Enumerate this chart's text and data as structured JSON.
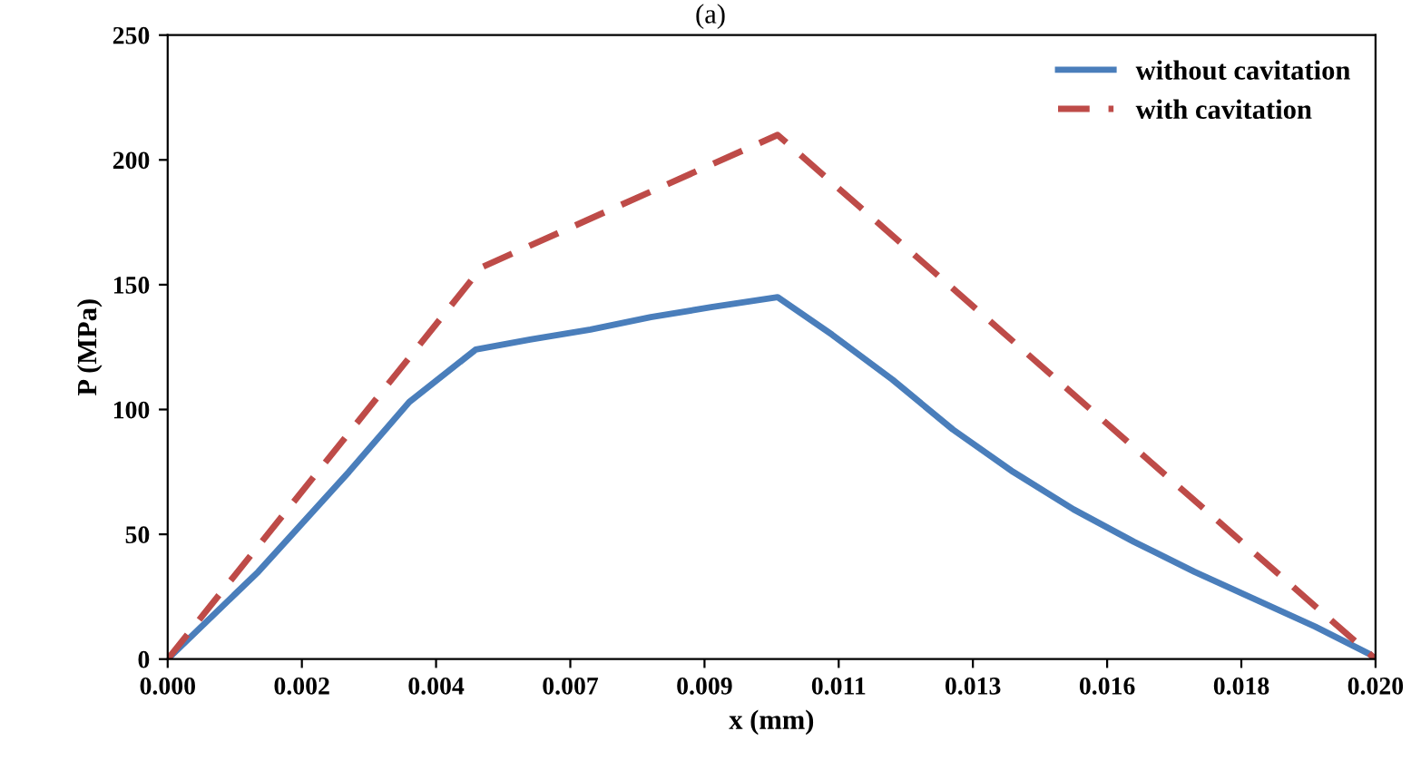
{
  "chart_data": {
    "type": "line",
    "title": "(a)",
    "xlabel": "x (mm)",
    "ylabel": "P (MPa)",
    "xlim": [
      0,
      0.02
    ],
    "ylim": [
      0,
      250
    ],
    "xticks": [
      {
        "value": 0,
        "label": "0.000"
      },
      {
        "value": 0.002222,
        "label": "0.002"
      },
      {
        "value": 0.004444,
        "label": "0.004"
      },
      {
        "value": 0.006667,
        "label": "0.007"
      },
      {
        "value": 0.008889,
        "label": "0.009"
      },
      {
        "value": 0.011111,
        "label": "0.011"
      },
      {
        "value": 0.013333,
        "label": "0.013"
      },
      {
        "value": 0.015556,
        "label": "0.016"
      },
      {
        "value": 0.017778,
        "label": "0.018"
      },
      {
        "value": 0.02,
        "label": "0.020"
      }
    ],
    "yticks": [
      0,
      50,
      100,
      150,
      200,
      250
    ],
    "grid": false,
    "legend": "top right",
    "series": [
      {
        "name": "without cavitation",
        "color": "#4a7ebb",
        "line_style": "solid",
        "x": [
          0,
          0.0015,
          0.003,
          0.004,
          0.0051,
          0.006,
          0.007,
          0.008,
          0.009,
          0.0101,
          0.011,
          0.012,
          0.013,
          0.014,
          0.015,
          0.016,
          0.017,
          0.018,
          0.019,
          0.0199,
          0.02
        ],
        "values": [
          0,
          35,
          75,
          103,
          124,
          128,
          132,
          137,
          141,
          145,
          130,
          112,
          92,
          75,
          60,
          47,
          35,
          24,
          13,
          2,
          0
        ]
      },
      {
        "name": "with cavitation",
        "color": "#be4b48",
        "line_style": "dashed",
        "x": [
          0,
          0.0052,
          0.0101,
          0.02
        ],
        "values": [
          0,
          157,
          210,
          0
        ]
      }
    ]
  }
}
